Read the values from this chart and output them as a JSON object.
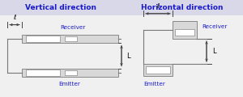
{
  "bg_color": "#f0f0f0",
  "title_bg": "#d8d8e8",
  "title_left": "Vertical direction",
  "title_right": "Horizontal direction",
  "title_fontsize": 6.5,
  "title_color": "#1a1acc",
  "label_color": "#1a1acc",
  "line_color": "#777777",
  "rect_fill": "#d8d8d8",
  "rect_edge": "#888888",
  "arrow_color": "#444444",
  "ell_label": "ℓ",
  "L_label": "L",
  "white": "#ffffff"
}
